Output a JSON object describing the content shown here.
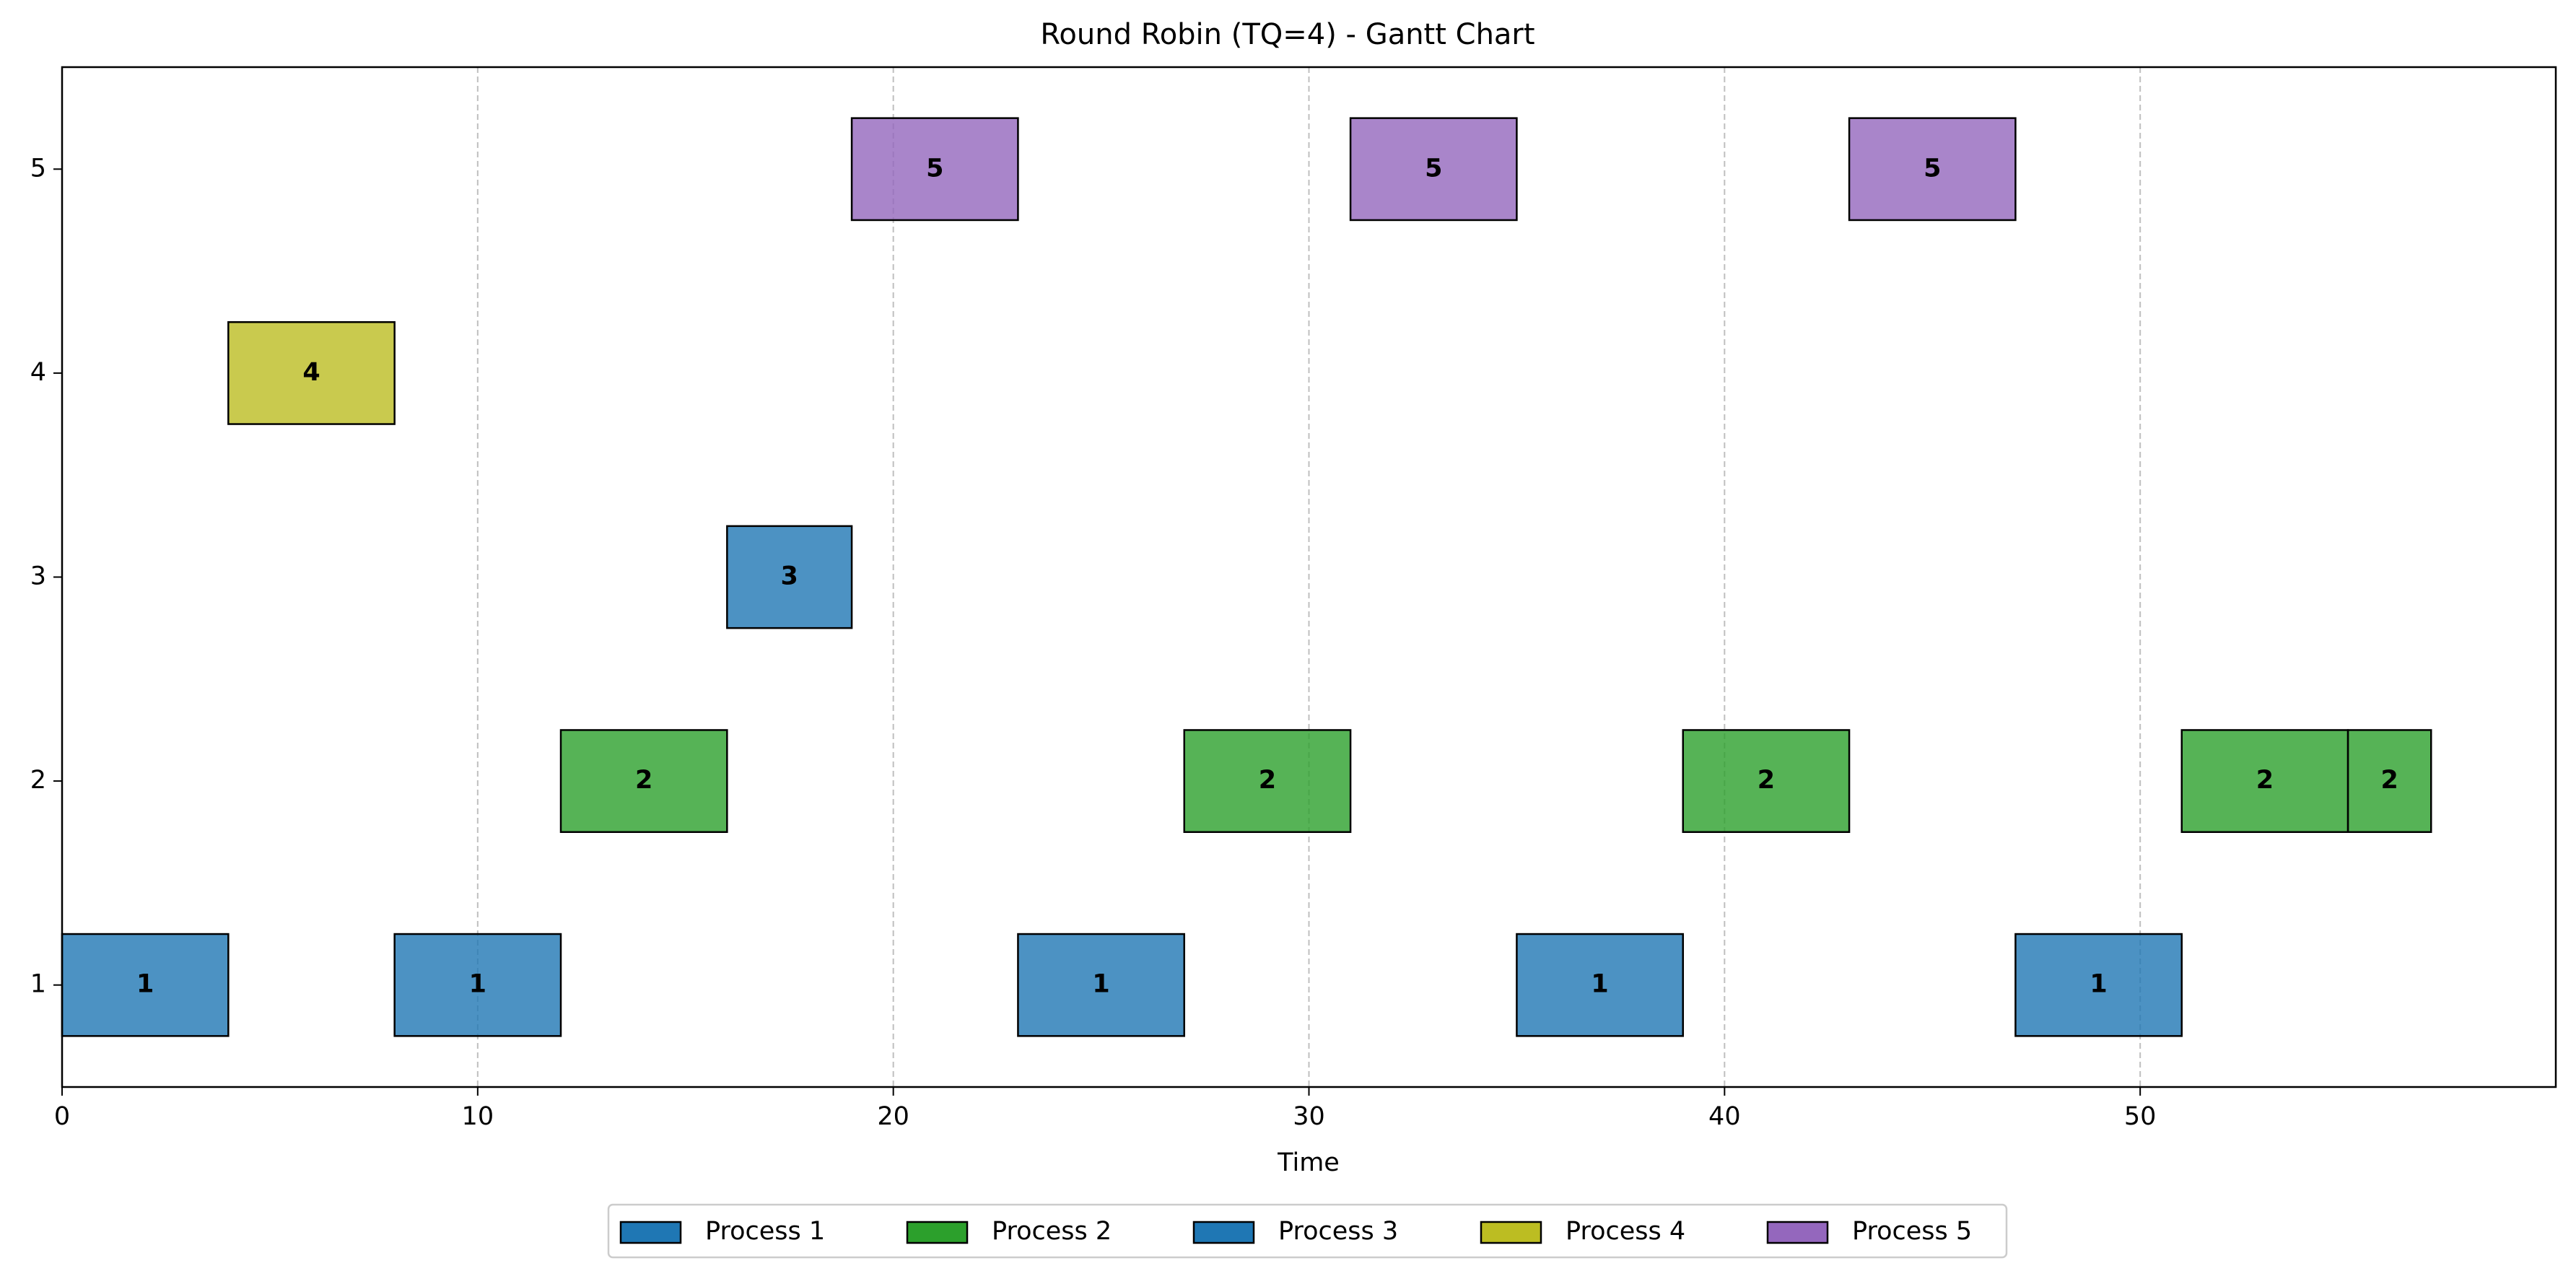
{
  "chart_data": {
    "type": "gantt",
    "title": "Round Robin (TQ=4) - Gantt Chart",
    "xlabel": "Time",
    "ylabel": "",
    "xlim": [
      0,
      60
    ],
    "ylim": [
      0.5,
      5.5
    ],
    "x_ticks": [
      "0",
      "10",
      "20",
      "30",
      "40",
      "50"
    ],
    "y_ticks": [
      "1",
      "2",
      "3",
      "4",
      "5"
    ],
    "grid": "vertical dashed at x ticks",
    "legend_position": "bottom-center",
    "legend": [
      {
        "label": "Process 1",
        "color": "#1f77b4"
      },
      {
        "label": "Process 2",
        "color": "#2ca02c"
      },
      {
        "label": "Process 3",
        "color": "#1f77b4"
      },
      {
        "label": "Process 4",
        "color": "#bcbd22"
      },
      {
        "label": "Process 5",
        "color": "#9467bd"
      }
    ],
    "bar_alpha": 0.8,
    "segments": [
      {
        "process": 1,
        "start": 0,
        "end": 4,
        "label": "1"
      },
      {
        "process": 4,
        "start": 4,
        "end": 8,
        "label": "4"
      },
      {
        "process": 1,
        "start": 8,
        "end": 12,
        "label": "1"
      },
      {
        "process": 2,
        "start": 12,
        "end": 16,
        "label": "2"
      },
      {
        "process": 3,
        "start": 16,
        "end": 19,
        "label": "3"
      },
      {
        "process": 5,
        "start": 19,
        "end": 23,
        "label": "5"
      },
      {
        "process": 1,
        "start": 23,
        "end": 27,
        "label": "1"
      },
      {
        "process": 2,
        "start": 27,
        "end": 31,
        "label": "2"
      },
      {
        "process": 5,
        "start": 31,
        "end": 35,
        "label": "5"
      },
      {
        "process": 1,
        "start": 35,
        "end": 39,
        "label": "1"
      },
      {
        "process": 2,
        "start": 39,
        "end": 43,
        "label": "2"
      },
      {
        "process": 5,
        "start": 43,
        "end": 47,
        "label": "5"
      },
      {
        "process": 1,
        "start": 47,
        "end": 51,
        "label": "1"
      },
      {
        "process": 2,
        "start": 51,
        "end": 55,
        "label": "2"
      },
      {
        "process": 2,
        "start": 55,
        "end": 57,
        "label": "2"
      }
    ]
  }
}
